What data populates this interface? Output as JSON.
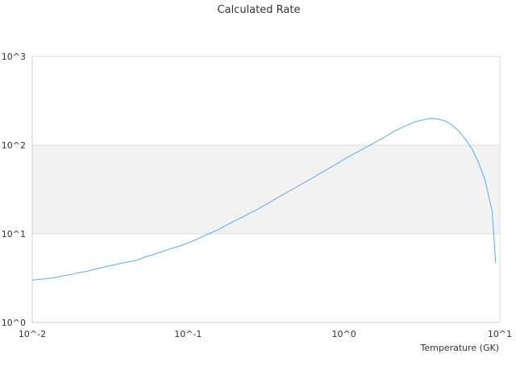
{
  "chart_data": {
    "type": "line",
    "title": "Calculated Rate",
    "xlabel": "Temperature (GK)",
    "ylabel": "",
    "x_scale": "log",
    "y_scale": "log",
    "xlim": [
      0.01,
      10
    ],
    "ylim": [
      1,
      1000
    ],
    "x_ticks": [
      {
        "value": 0.01,
        "label": "10^-2"
      },
      {
        "value": 0.1,
        "label": "10^-1"
      },
      {
        "value": 1,
        "label": "10^0"
      },
      {
        "value": 10,
        "label": "10^1"
      }
    ],
    "y_ticks": [
      {
        "value": 1,
        "label": "10^0"
      },
      {
        "value": 10,
        "label": "10^1"
      },
      {
        "value": 100,
        "label": "10^2"
      },
      {
        "value": 1000,
        "label": "10^3"
      }
    ],
    "grid": true,
    "legend": "none",
    "shaded_band": {
      "y_from": 10,
      "y_to": 100,
      "color": "#f2f2f2"
    },
    "colors": {
      "series": "#5aa9f0",
      "grid": "#dddddd",
      "axis": "#cccccc",
      "band": "#f2f2f2",
      "text": "#333333"
    },
    "series": [
      {
        "x": [
          0.01,
          0.0117,
          0.0142,
          0.0153,
          0.0175,
          0.0193,
          0.0224,
          0.0263,
          0.0317,
          0.0389,
          0.0472,
          0.0527,
          0.0584,
          0.0649,
          0.074,
          0.0865,
          0.101,
          0.1097,
          0.1191,
          0.1375,
          0.1569,
          0.1792,
          0.2089,
          0.2448,
          0.2839,
          0.3346,
          0.3914,
          0.4604,
          0.5489,
          0.6475,
          0.7575,
          0.8972,
          1.0554,
          1.2589,
          1.5014,
          1.7906,
          2.0893,
          2.4889,
          2.8576,
          3.2806,
          3.6475,
          3.9764,
          4.4209,
          4.9148,
          5.4623,
          5.9566,
          6.6222,
          7.222,
          8.0292,
          8.9375,
          9.4
        ],
        "y": [
          3.02,
          3.1,
          3.2,
          3.33,
          3.45,
          3.6,
          3.78,
          4.06,
          4.37,
          4.73,
          5.04,
          5.46,
          5.76,
          6.13,
          6.64,
          7.22,
          7.93,
          8.45,
          9.02,
          10.1,
          11.2,
          12.7,
          14.6,
          16.8,
          19.2,
          22.7,
          26.7,
          31.3,
          37.3,
          44.0,
          51.8,
          61.4,
          72.9,
          86.2,
          102,
          121,
          143,
          165,
          183,
          194,
          200,
          198,
          188,
          169,
          144,
          119,
          91.1,
          66.3,
          40.5,
          17.6,
          4.7
        ]
      }
    ]
  }
}
